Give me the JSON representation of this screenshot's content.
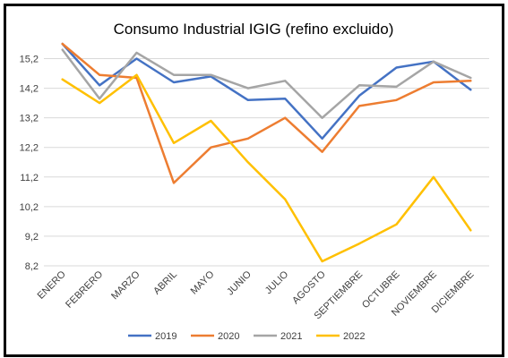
{
  "chart_data": {
    "type": "line",
    "title": "Consumo Industrial IGIG (refino excluido)",
    "xlabel": "",
    "ylabel": "",
    "categories": [
      "ENERO",
      "FEBRERO",
      "MARZO",
      "ABRIL",
      "MAYO",
      "JUNIO",
      "JULIO",
      "AGOSTO",
      "SEPTIEMBRE",
      "OCTUBRE",
      "NOVIEMBRE",
      "DICIEMBRE"
    ],
    "yticks": [
      "8,2",
      "9,2",
      "10,2",
      "11,2",
      "12,2",
      "13,2",
      "14,2",
      "15,2"
    ],
    "ylim": [
      8.2,
      15.7
    ],
    "grid": true,
    "legend_position": "bottom",
    "series": [
      {
        "name": "2019",
        "color": "#4472C4",
        "values": [
          15.7,
          14.3,
          15.2,
          14.4,
          14.6,
          13.8,
          13.85,
          12.5,
          13.95,
          14.9,
          15.1,
          14.15
        ]
      },
      {
        "name": "2020",
        "color": "#ED7D31",
        "values": [
          15.7,
          14.65,
          14.55,
          11.0,
          12.2,
          12.5,
          13.2,
          12.05,
          13.6,
          13.8,
          14.4,
          14.45
        ]
      },
      {
        "name": "2021",
        "color": "#A5A5A5",
        "values": [
          15.5,
          13.85,
          15.4,
          14.65,
          14.65,
          14.2,
          14.45,
          13.2,
          14.3,
          14.25,
          15.1,
          14.55
        ]
      },
      {
        "name": "2022",
        "color": "#FFC000",
        "values": [
          14.5,
          13.7,
          14.65,
          12.35,
          13.1,
          11.7,
          10.45,
          8.35,
          8.95,
          9.6,
          11.2,
          9.4
        ]
      }
    ]
  }
}
